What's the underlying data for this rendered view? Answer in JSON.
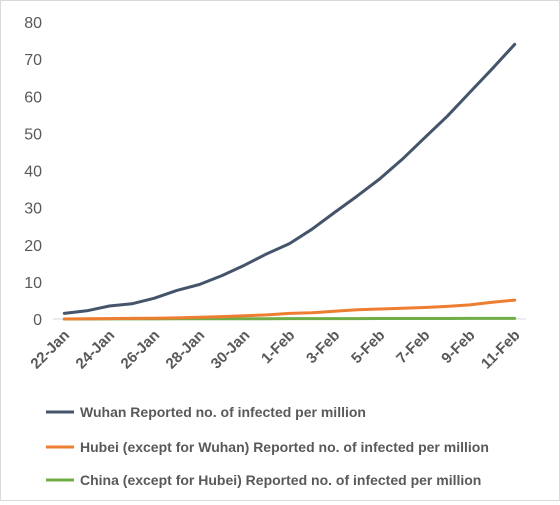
{
  "chart_data": {
    "type": "line",
    "categories": [
      "22-Jan",
      "23-Jan",
      "24-Jan",
      "25-Jan",
      "26-Jan",
      "27-Jan",
      "28-Jan",
      "29-Jan",
      "30-Jan",
      "31-Jan",
      "1-Feb",
      "2-Feb",
      "3-Feb",
      "4-Feb",
      "5-Feb",
      "6-Feb",
      "7-Feb",
      "8-Feb",
      "9-Feb",
      "10-Feb",
      "11-Feb"
    ],
    "tick_labels": [
      "22-Jan",
      "24-Jan",
      "26-Jan",
      "28-Jan",
      "30-Jan",
      "1-Feb",
      "3-Feb",
      "5-Feb",
      "7-Feb",
      "9-Feb",
      "11-Feb"
    ],
    "ylim": [
      0,
      80
    ],
    "yticks": [
      0,
      10,
      20,
      30,
      40,
      50,
      60,
      70,
      80
    ],
    "grid": false,
    "legend_position": "bottom",
    "series": [
      {
        "name": "Wuhan Reported no. of infected per million",
        "color": "#44546a",
        "values": [
          1.5,
          2.2,
          3.5,
          4.1,
          5.6,
          7.7,
          9.3,
          11.7,
          14.5,
          17.6,
          20.3,
          24.2,
          28.7,
          33.1,
          37.7,
          43.0,
          48.8,
          54.6,
          61.0,
          67.4,
          74.0
        ]
      },
      {
        "name": "Hubei (except for Wuhan) Reported no. of infected per million",
        "color": "#ed7d31",
        "values": [
          0.0,
          0.05,
          0.1,
          0.15,
          0.2,
          0.3,
          0.45,
          0.65,
          0.85,
          1.1,
          1.5,
          1.7,
          2.1,
          2.5,
          2.7,
          2.9,
          3.1,
          3.4,
          3.8,
          4.5,
          5.1
        ]
      },
      {
        "name": "China (except for Hubei) Reported no. of infected per million",
        "color": "#70ad47",
        "values": [
          0.0,
          0.01,
          0.02,
          0.03,
          0.04,
          0.05,
          0.06,
          0.07,
          0.08,
          0.09,
          0.1,
          0.11,
          0.12,
          0.12,
          0.13,
          0.13,
          0.14,
          0.14,
          0.15,
          0.15,
          0.16
        ]
      }
    ]
  }
}
